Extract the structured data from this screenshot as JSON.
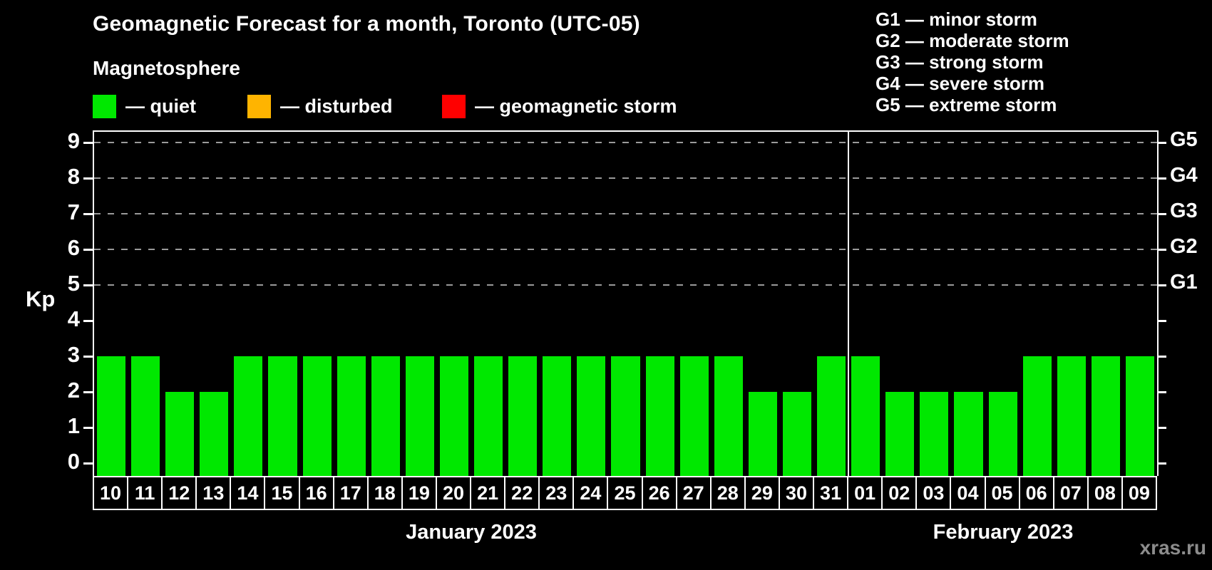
{
  "header": {
    "title": "Geomagnetic Forecast for a month, Toronto (UTC-05)",
    "subtitle": "Magnetosphere"
  },
  "legend": {
    "items": [
      {
        "name": "quiet",
        "label": "— quiet",
        "color": "#00e800"
      },
      {
        "name": "disturbed",
        "label": "— disturbed",
        "color": "#ffb400"
      },
      {
        "name": "geomagnetic-storm",
        "label": "— geomagnetic storm",
        "color": "#ff0000"
      }
    ]
  },
  "storm_legend": {
    "lines": [
      "G1 — minor storm",
      "G2 — moderate storm",
      "G3 — strong storm",
      "G4 — severe storm",
      "G5 — extreme storm"
    ]
  },
  "watermark": "xras.ru",
  "colors": {
    "background": "#000000",
    "axis": "#ffffff",
    "grid": "#9a9a9a",
    "bar_quiet": "#00e800",
    "bar_disturbed": "#ffb400",
    "bar_storm": "#ff0000",
    "watermark": "#8c8c8c"
  },
  "chart_data": {
    "type": "bar",
    "title": "Geomagnetic Forecast for a month, Toronto (UTC-05)",
    "ylabel": "Kp",
    "ylim": [
      0,
      9
    ],
    "yticks": [
      0,
      1,
      2,
      3,
      4,
      5,
      6,
      7,
      8,
      9
    ],
    "grid_levels": [
      5,
      6,
      7,
      8,
      9
    ],
    "grid_style": "dashed horizontal lines at G-storm levels only",
    "legend_position": "top-left",
    "right_axis": [
      {
        "label": "G1",
        "kp": 5
      },
      {
        "label": "G2",
        "kp": 6
      },
      {
        "label": "G3",
        "kp": 7
      },
      {
        "label": "G4",
        "kp": 8
      },
      {
        "label": "G5",
        "kp": 9
      }
    ],
    "bar_color": "#00e800",
    "bar_status_all": "quiet",
    "months": [
      {
        "label": "January 2023",
        "days": [
          "10",
          "11",
          "12",
          "13",
          "14",
          "15",
          "16",
          "17",
          "18",
          "19",
          "20",
          "21",
          "22",
          "23",
          "24",
          "25",
          "26",
          "27",
          "28",
          "29",
          "30",
          "31"
        ],
        "values": [
          3,
          3,
          2,
          2,
          3,
          3,
          3,
          3,
          3,
          3,
          3,
          3,
          3,
          3,
          3,
          3,
          3,
          3,
          3,
          2,
          2,
          3
        ]
      },
      {
        "label": "February 2023",
        "days": [
          "01",
          "02",
          "03",
          "04",
          "05",
          "06",
          "07",
          "08",
          "09"
        ],
        "values": [
          3,
          2,
          2,
          2,
          2,
          3,
          3,
          3,
          3
        ]
      }
    ]
  }
}
